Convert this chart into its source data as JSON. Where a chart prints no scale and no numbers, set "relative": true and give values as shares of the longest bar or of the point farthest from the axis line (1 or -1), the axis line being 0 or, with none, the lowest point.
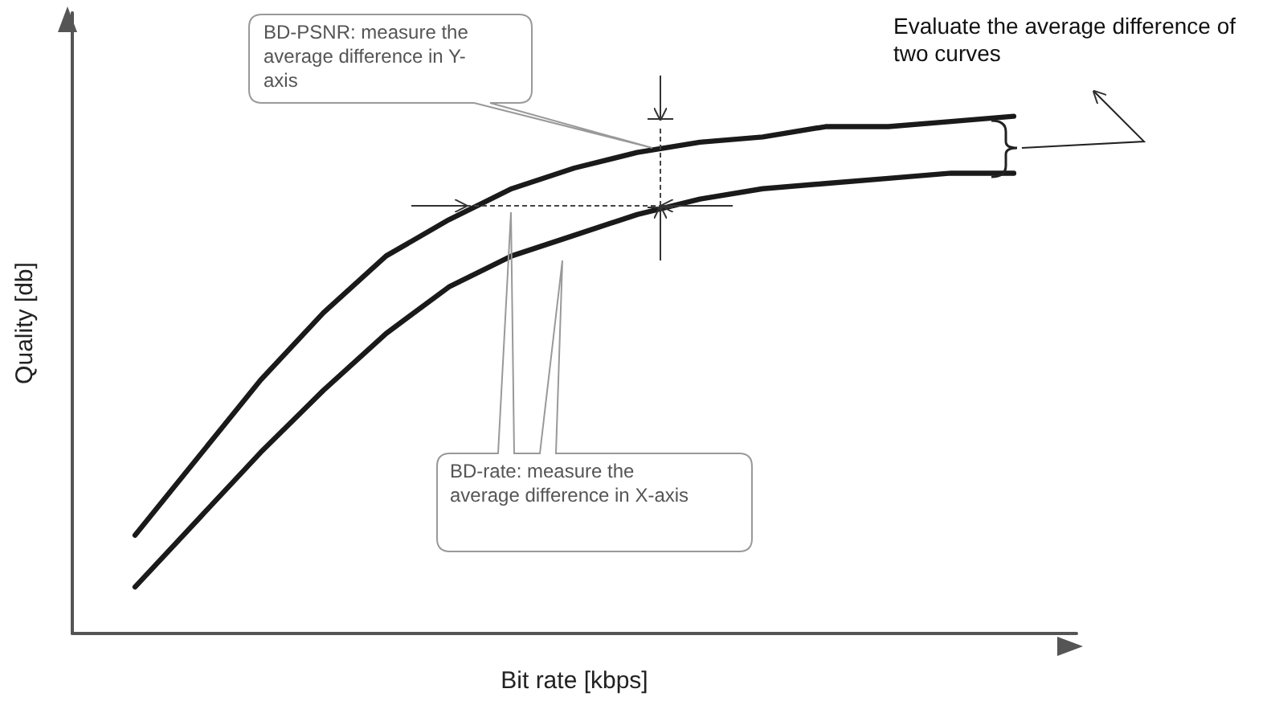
{
  "chart_data": {
    "type": "line",
    "relative": true,
    "xlabel": "Bit rate [kbps]",
    "ylabel": "Quality [db]",
    "categories": [
      null,
      null,
      null,
      null,
      null,
      null,
      null,
      null,
      null,
      null,
      null,
      null,
      null,
      null,
      null,
      null,
      null
    ],
    "series": [
      {
        "color": "#1a1a1a",
        "values": [
          null,
          0.19,
          0.34,
          0.49,
          0.62,
          0.73,
          0.8,
          0.86,
          0.9,
          0.93,
          0.95,
          0.96,
          0.98,
          0.98,
          0.99,
          1,
          null
        ]
      },
      {
        "color": "#1a1a1a",
        "values": [
          null,
          0.09,
          0.22,
          0.35,
          0.47,
          0.58,
          0.67,
          0.73,
          0.77,
          0.81,
          0.84,
          0.86,
          0.87,
          0.88,
          0.89,
          0.89,
          null
        ]
      }
    ],
    "annotations": [
      "Evaluate the average difference of two curves",
      "BD-PSNR: measure the average difference in Y-axis",
      "BD-rate: measure the average difference in X-axis"
    ],
    "marker": "none",
    "line_style": "solid"
  }
}
